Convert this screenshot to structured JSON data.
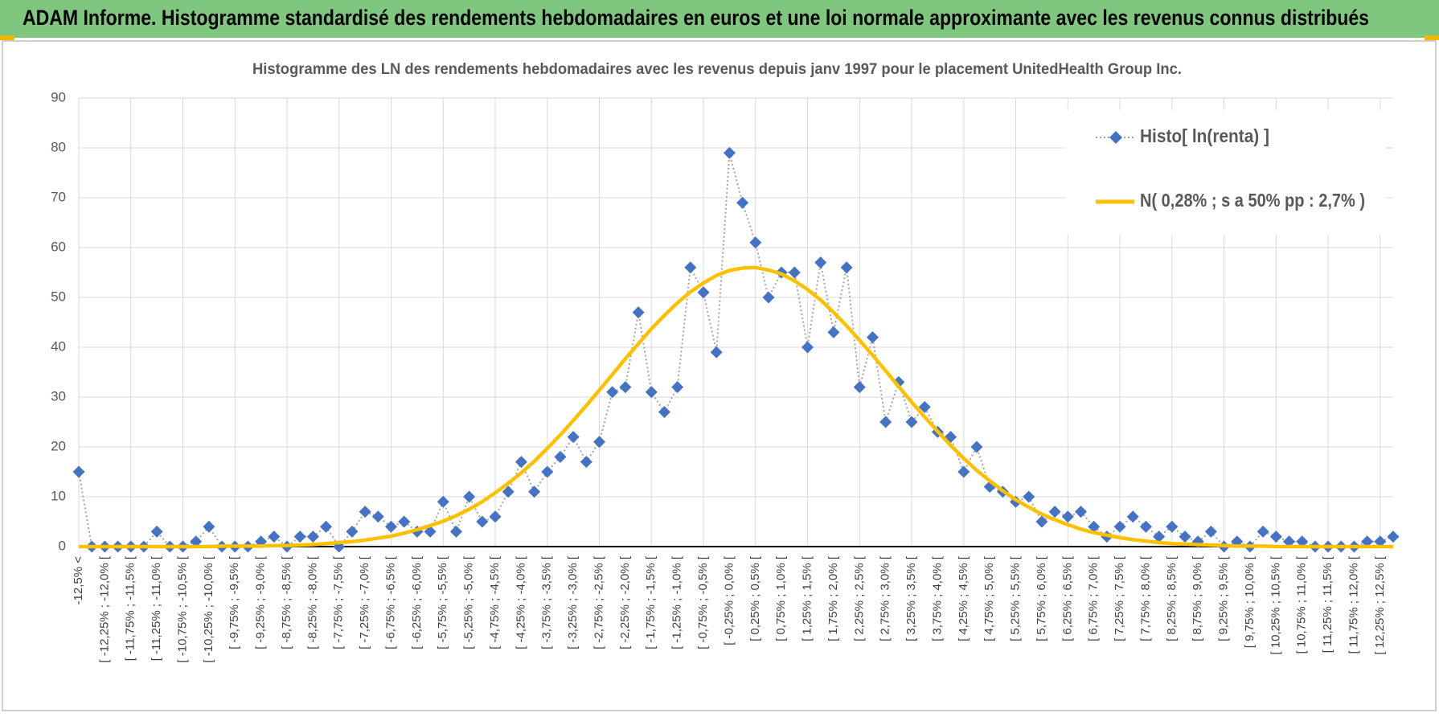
{
  "header": {
    "title": "ADAM Informe. Histogramme standardisé des rendements hebdomadaires en euros et une loi normale approximante avec les revenus connus distribués"
  },
  "chart_data": {
    "type": "line",
    "title": "Histogramme des LN des rendements hebdomadaires avec les revenus depuis janv 1997 pour le placement UnitedHealth  Group Inc.",
    "categories": [
      "-12,5% <",
      null,
      "[ -12,25% ; -12,0% [",
      null,
      "[ -11,75% ; -11,5% [",
      null,
      "[ -11,25% ; -11,0% [",
      null,
      "[ -10,75% ; -10,5% [",
      null,
      "[ -10,25% ; -10,0% [",
      null,
      "[ -9,75% ; -9,5% [",
      null,
      "[ -9,25% ; -9,0% [",
      null,
      "[ -8,75% ; -8,5% [",
      null,
      "[ -8,25% ; -8,0% [",
      null,
      "[ -7,75% ; -7,5% [",
      null,
      "[ -7,25% ; -7,0% [",
      null,
      "[ -6,75% ; -6,5% [",
      null,
      "[ -6,25% ; -6,0% [",
      null,
      "[ -5,75% ; -5,5% [",
      null,
      "[ -5,25% ; -5,0% [",
      null,
      "[ -4,75% ; -4,5% [",
      null,
      "[ -4,25% ; -4,0% [",
      null,
      "[ -3,75% ; -3,5% [",
      null,
      "[ -3,25% ; -3,0% [",
      null,
      "[ -2,75% ; -2,5% [",
      null,
      "[ -2,25% ; -2,0% [",
      null,
      "[ -1,75% ; -1,5% [",
      null,
      "[ -1,25% ; -1,0% [",
      null,
      "[ -0,75% ; -0,5% [",
      null,
      "[ -0,25% ; 0,0% [",
      null,
      "[ 0,25% ; 0,5% [",
      null,
      "[ 0,75% ; 1,0% [",
      null,
      "[ 1,25% ; 1,5% [",
      null,
      "[ 1,75% ; 2,0% [",
      null,
      "[ 2,25% ; 2,5% [",
      null,
      "[ 2,75% ; 3,0% [",
      null,
      "[ 3,25% ; 3,5% [",
      null,
      "[ 3,75% ; 4,0% [",
      null,
      "[ 4,25% ; 4,5% [",
      null,
      "[ 4,75% ; 5,0% [",
      null,
      "[ 5,25% ; 5,5% [",
      null,
      "[ 5,75% ; 6,0% [",
      null,
      "[ 6,25% ; 6,5% [",
      null,
      "[ 6,75% ; 7,0% [",
      null,
      "[ 7,25% ; 7,5% [",
      null,
      "[ 7,75% ; 8,0% [",
      null,
      "[ 8,25% ; 8,5% [",
      null,
      "[ 8,75% ; 9,0% [",
      null,
      "[ 9,25% ; 9,5% [",
      null,
      "[ 9,75% ; 10,0% [",
      null,
      "[ 10,25% ; 10,5% [",
      null,
      "[ 10,75% ; 11,0% [",
      null,
      "[ 11,25% ; 11,5% [",
      null,
      "[ 11,75% ; 12,0% [",
      null,
      "[ 12,25% ; 12,5% [",
      null
    ],
    "series": [
      {
        "name": "Histo[ ln(renta) ]",
        "color": "#4472c4",
        "marker": "diamond",
        "line_color": "#a5a5a5",
        "line_style": "dotted",
        "values": [
          15,
          0,
          0,
          0,
          0,
          0,
          3,
          0,
          0,
          1,
          4,
          0,
          0,
          0,
          1,
          2,
          0,
          2,
          2,
          4,
          0,
          3,
          7,
          6,
          4,
          5,
          3,
          3,
          9,
          3,
          10,
          5,
          6,
          11,
          17,
          11,
          15,
          18,
          22,
          17,
          21,
          31,
          32,
          47,
          31,
          27,
          32,
          56,
          51,
          39,
          79,
          69,
          61,
          50,
          55,
          55,
          40,
          57,
          43,
          56,
          32,
          42,
          25,
          33,
          25,
          28,
          23,
          22,
          15,
          20,
          12,
          11,
          9,
          10,
          5,
          7,
          6,
          7,
          4,
          2,
          4,
          6,
          4,
          2,
          4,
          2,
          1,
          3,
          0,
          1,
          0,
          3,
          2,
          1,
          1,
          0,
          0,
          0,
          0,
          1,
          1,
          2
        ]
      },
      {
        "name": "N( 0,28% ; s a 50% pp : 2,7% )",
        "color": "#ffc000",
        "marker": "none",
        "line_color": "#ffc000",
        "line_style": "solid",
        "values": [
          0,
          0,
          0,
          0,
          0,
          0,
          0,
          0,
          0,
          0,
          0,
          0.1,
          0.1,
          0.1,
          0.1,
          0.2,
          0.2,
          0.3,
          0.4,
          0.6,
          0.8,
          1.0,
          1.3,
          1.7,
          2.1,
          2.7,
          3.4,
          4.2,
          5.1,
          6.2,
          7.5,
          9.0,
          10.8,
          12.7,
          14.8,
          17.1,
          19.7,
          22.4,
          25.3,
          28.3,
          31.4,
          34.5,
          37.7,
          40.7,
          43.7,
          46.4,
          48.9,
          51.1,
          52.9,
          54.4,
          55.4,
          55.9,
          56.0,
          55.5,
          54.7,
          53.3,
          51.6,
          49.5,
          47.0,
          44.3,
          41.4,
          38.4,
          35.3,
          32.1,
          29.0,
          26.0,
          23.1,
          20.3,
          17.7,
          15.3,
          13.2,
          11.2,
          9.4,
          7.9,
          6.5,
          5.4,
          4.4,
          3.5,
          2.8,
          2.3,
          1.8,
          1.4,
          1.1,
          0.8,
          0.6,
          0.5,
          0.4,
          0.3,
          0.2,
          0.1,
          0.1,
          0.1,
          0,
          0,
          0,
          0,
          0,
          0,
          0,
          0,
          0,
          0
        ]
      }
    ],
    "ylim": [
      0,
      90
    ],
    "yticks": [
      0,
      10,
      20,
      30,
      40,
      50,
      60,
      70,
      80,
      90
    ],
    "grid": true,
    "legend": "upper right"
  }
}
